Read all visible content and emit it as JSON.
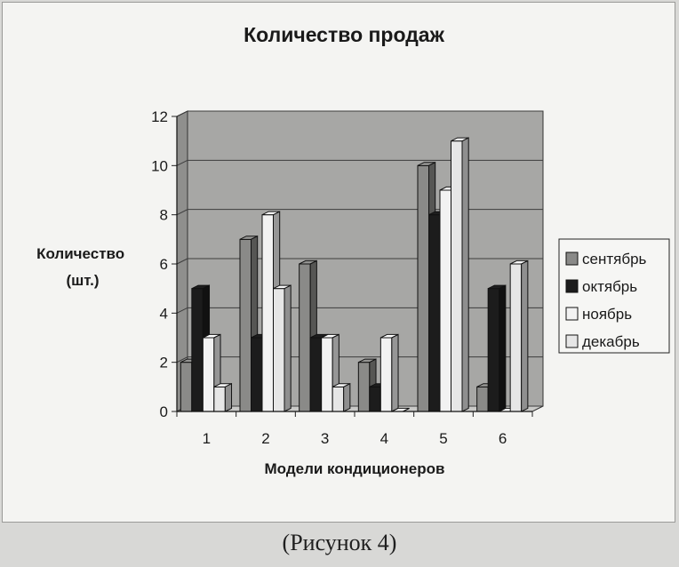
{
  "caption": "(Рисунок  4)",
  "colors": {
    "plot_back": "#a7a7a5",
    "plot_side": "#8f8f8d",
    "plot_floor": "#c9c9c7",
    "grid": "#3c3c3c",
    "frame_bg": "#f4f4f2"
  },
  "chart_data": {
    "type": "bar",
    "style": "3d-clustered-column",
    "title": "Количество продаж",
    "ylabel": "Количество\n(шт.)",
    "xlabel": "Модели кондиционеров",
    "categories": [
      "1",
      "2",
      "3",
      "4",
      "5",
      "6"
    ],
    "ylim": [
      0,
      12
    ],
    "yticks": [
      0,
      2,
      4,
      6,
      8,
      10,
      12
    ],
    "grid": true,
    "legend_position": "right",
    "series": [
      {
        "name": "сентябрь",
        "values": [
          2,
          7,
          6,
          2,
          10,
          1
        ],
        "color": "#8a8a88"
      },
      {
        "name": "октябрь",
        "values": [
          5,
          3,
          3,
          1,
          8,
          5
        ],
        "color": "#1c1c1c"
      },
      {
        "name": "ноябрь",
        "values": [
          3,
          8,
          3,
          3,
          9,
          0
        ],
        "color": "#f2f2f2"
      },
      {
        "name": "декабрь",
        "values": [
          1,
          5,
          1,
          0,
          11,
          6
        ],
        "color": "#e6e6e6"
      }
    ]
  }
}
